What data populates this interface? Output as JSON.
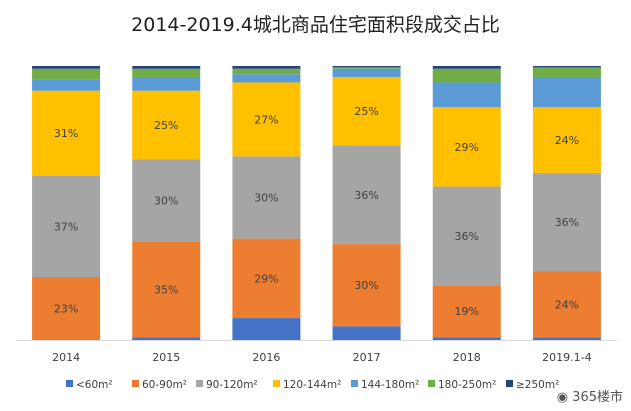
{
  "chart_data": {
    "type": "bar",
    "stacked": true,
    "title": "2014-2019.4城北商品住宅面积段成交占比",
    "xlabel": "",
    "ylabel": "",
    "ylim": [
      0,
      100
    ],
    "grid": false,
    "legend_position": "bottom",
    "categories": [
      "2014",
      "2015",
      "2016",
      "2017",
      "2018",
      "2019.1-4"
    ],
    "series": [
      {
        "name": "<60m²",
        "color": "#4472C4",
        "values": [
          0,
          1,
          8,
          5,
          1,
          1
        ],
        "labels": [
          "",
          "",
          "",
          "",
          "",
          ""
        ]
      },
      {
        "name": "60-90m²",
        "color": "#ED7D31",
        "values": [
          23,
          35,
          29,
          30,
          19,
          24
        ],
        "labels": [
          "23%",
          "35%",
          "29%",
          "30%",
          "19%",
          "24%"
        ]
      },
      {
        "name": "90-120m²",
        "color": "#A5A5A5",
        "values": [
          37,
          30,
          30,
          36,
          36,
          36
        ],
        "labels": [
          "37%",
          "30%",
          "30%",
          "36%",
          "36%",
          "36%"
        ]
      },
      {
        "name": "120-144m²",
        "color": "#FFC000",
        "values": [
          31,
          25,
          27,
          25,
          29,
          24
        ],
        "labels": [
          "31%",
          "25%",
          "27%",
          "25%",
          "29%",
          "24%"
        ]
      },
      {
        "name": "144-180m²",
        "color": "#5B9BD5",
        "values": [
          4,
          5,
          3,
          3,
          9,
          11
        ],
        "labels": [
          "",
          "",
          "",
          "",
          "",
          ""
        ]
      },
      {
        "name": "180-250m²",
        "color": "#70AD47",
        "values": [
          4,
          3,
          2,
          0.5,
          5,
          3.5
        ],
        "labels": [
          "",
          "",
          "",
          "",
          "",
          ""
        ]
      },
      {
        "name": "≥250m²",
        "color": "#264478",
        "values": [
          1,
          1,
          1,
          0.5,
          1,
          0.5
        ],
        "labels": [
          "",
          "",
          "",
          "",
          "",
          ""
        ]
      }
    ]
  },
  "watermark": {
    "text": "365楼市"
  }
}
